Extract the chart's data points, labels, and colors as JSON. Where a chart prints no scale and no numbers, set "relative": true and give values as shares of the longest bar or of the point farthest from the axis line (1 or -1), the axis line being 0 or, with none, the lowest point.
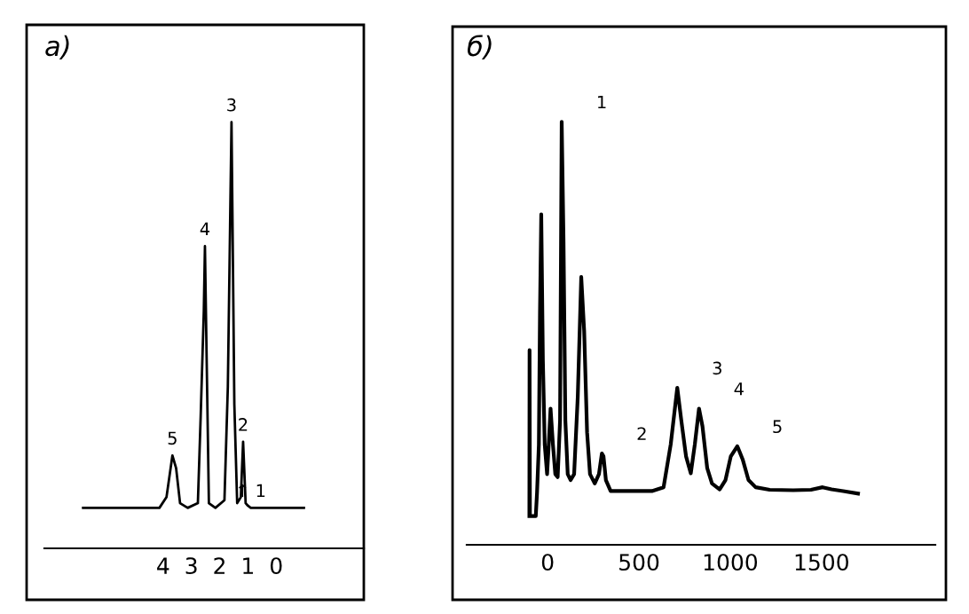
{
  "chart_data": [
    {
      "type": "line",
      "title": "a)",
      "relative": true,
      "xlim": [
        8.2,
        -3.1
      ],
      "xticks": [
        4,
        3,
        2,
        1,
        0
      ],
      "tick_labels": "x",
      "color": "#000000",
      "x": [
        6.83,
        4.13,
        3.88,
        3.67,
        3.54,
        3.4,
        3.13,
        2.77,
        2.67,
        2.56,
        2.52,
        2.46,
        2.38,
        2.15,
        1.83,
        1.71,
        1.58,
        1.48,
        1.38,
        1.25,
        1.17,
        1.08,
        1.0,
        0.9,
        -0.98
      ],
      "values": [
        0.095,
        0.095,
        0.12,
        0.218,
        0.188,
        0.106,
        0.095,
        0.106,
        0.311,
        0.557,
        0.709,
        0.447,
        0.106,
        0.095,
        0.113,
        0.379,
        1.0,
        0.338,
        0.106,
        0.12,
        0.25,
        0.106,
        0.1,
        0.095,
        0.095
      ],
      "annotations": [
        {
          "text": "5",
          "x": 3.67,
          "y": 0.218
        },
        {
          "text": "4",
          "x": 2.52,
          "y": 0.709
        },
        {
          "text": "3",
          "x": 1.58,
          "y": 1.0
        },
        {
          "text": "2",
          "x": 1.17,
          "y": 0.25
        },
        {
          "text": "↑ 1",
          "x": 0.9,
          "y": 0.095
        }
      ]
    },
    {
      "type": "line",
      "title": "б)",
      "relative": true,
      "xlim": [
        -443,
        2123
      ],
      "xticks": [
        0,
        500,
        1000,
        1500
      ],
      "tick_labels": "x",
      "color": "#000000",
      "x": [
        -100,
        -99,
        -97,
        -81,
        -65,
        -58,
        -48,
        -42,
        -35,
        -26,
        -16,
        -3,
        6,
        16,
        29,
        42,
        55,
        68,
        77,
        87,
        97,
        110,
        126,
        145,
        165,
        184,
        200,
        216,
        232,
        258,
        281,
        297,
        306,
        319,
        345,
        442,
        571,
        635,
        674,
        710,
        732,
        758,
        784,
        806,
        829,
        848,
        874,
        900,
        942,
        974,
        1003,
        1039,
        1068,
        1100,
        1139,
        1216,
        1345,
        1442,
        1506,
        1555,
        1619,
        1700
      ],
      "values": [
        0.068,
        0.46,
        0.068,
        0.068,
        0.068,
        0.124,
        0.237,
        0.548,
        0.781,
        0.435,
        0.237,
        0.167,
        0.237,
        0.322,
        0.237,
        0.167,
        0.16,
        0.294,
        1.0,
        0.718,
        0.294,
        0.167,
        0.153,
        0.167,
        0.35,
        0.633,
        0.506,
        0.266,
        0.167,
        0.145,
        0.167,
        0.216,
        0.209,
        0.153,
        0.127,
        0.127,
        0.127,
        0.136,
        0.237,
        0.371,
        0.294,
        0.209,
        0.169,
        0.237,
        0.322,
        0.28,
        0.181,
        0.145,
        0.131,
        0.153,
        0.209,
        0.233,
        0.202,
        0.153,
        0.136,
        0.13,
        0.129,
        0.13,
        0.136,
        0.131,
        0.127,
        0.121
      ],
      "annotations": [
        {
          "text": "1",
          "x": 77,
          "y": 1.0
        },
        {
          "text": "2",
          "x": 297,
          "y": 0.216
        },
        {
          "text": "3",
          "x": 710,
          "y": 0.371
        },
        {
          "text": "4",
          "x": 829,
          "y": 0.322
        },
        {
          "text": "5",
          "x": 1039,
          "y": 0.233
        }
      ]
    }
  ]
}
